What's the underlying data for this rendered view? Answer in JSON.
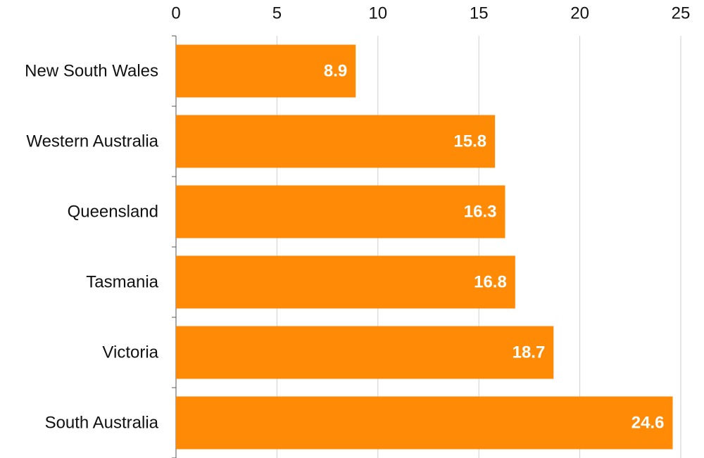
{
  "chart_data": {
    "type": "bar",
    "orientation": "horizontal",
    "categories": [
      "New South Wales",
      "Western Australia",
      "Queensland",
      "Tasmania",
      "Victoria",
      "South Australia"
    ],
    "values": [
      8.9,
      15.8,
      16.3,
      16.8,
      18.7,
      24.6
    ],
    "color": "#ff8a05",
    "xlim": [
      0,
      25
    ],
    "xticks": [
      0,
      5,
      10,
      15,
      20,
      25
    ],
    "grid": true
  }
}
